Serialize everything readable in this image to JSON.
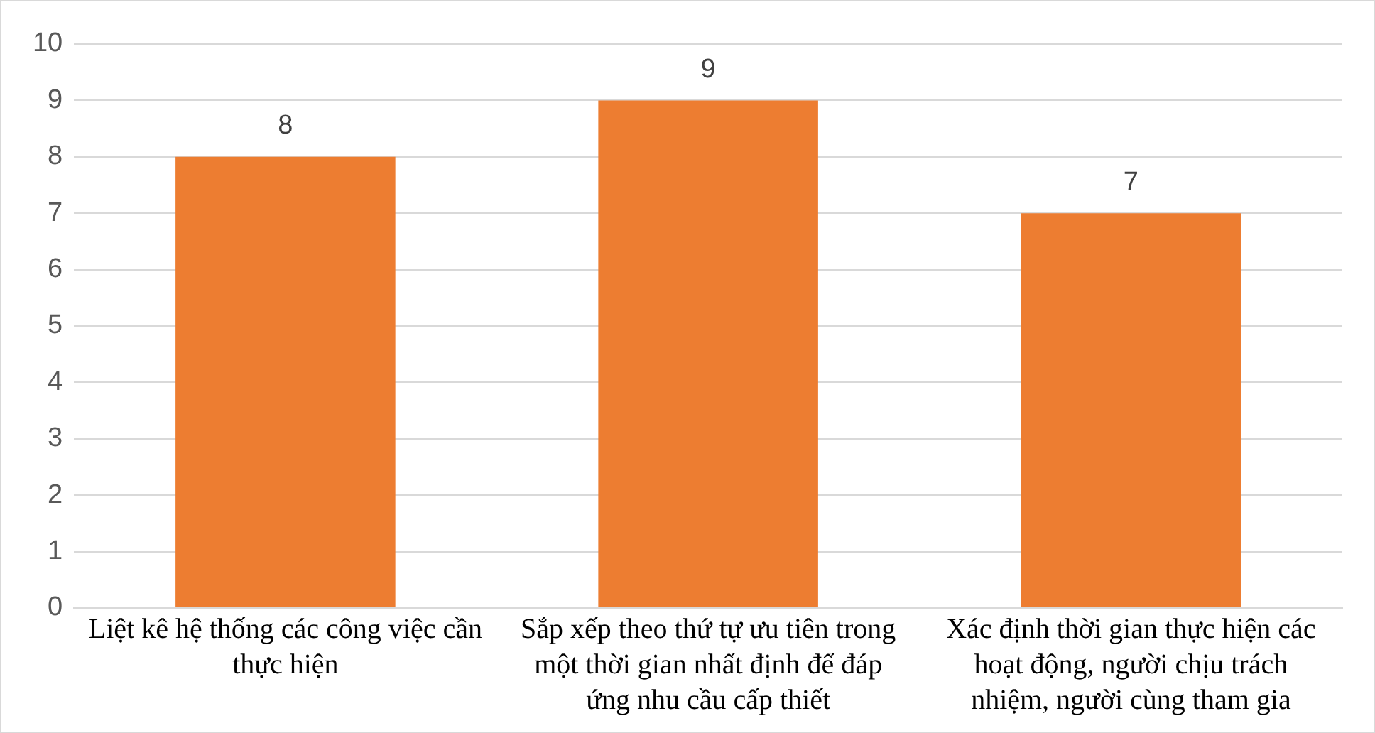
{
  "chart_data": {
    "type": "bar",
    "categories": [
      "Liệt kê hệ thống các công việc cần thực hiện",
      "Sắp xếp theo thứ tự ưu tiên trong một thời gian nhất định để đáp ứng nhu cầu cấp thiết",
      "Xác định thời gian thực hiện các hoạt động, người chịu trách nhiệm, người cùng tham gia"
    ],
    "values": [
      8,
      9,
      7
    ],
    "color": "#ed7d31",
    "ylim": [
      0,
      10
    ],
    "yticks": [
      0,
      1,
      2,
      3,
      4,
      5,
      6,
      7,
      8,
      9,
      10
    ],
    "grid": "y",
    "legend": false,
    "data_labels": true
  }
}
